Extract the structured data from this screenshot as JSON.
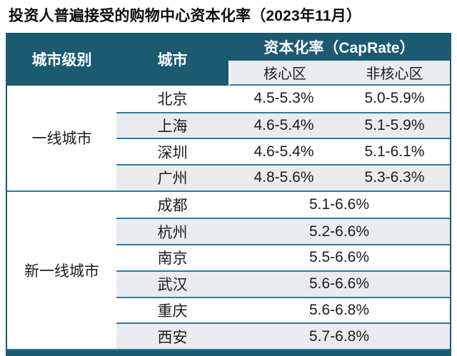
{
  "title": "投资人普遍接受的购物中心资本化率（2023年11月）",
  "table": {
    "header": {
      "tier_col": "城市级别",
      "city_col": "城市",
      "caprate_col": "资本化率（CapRate）",
      "core_col": "核心区",
      "noncore_col": "非核心区"
    },
    "tiers": [
      {
        "label": "一线城市",
        "rows": [
          {
            "city": "北京",
            "core": "4.5-5.3%",
            "noncore": "5.0-5.9%"
          },
          {
            "city": "上海",
            "core": "4.6-5.4%",
            "noncore": "5.1-5.9%"
          },
          {
            "city": "深圳",
            "core": "4.6-5.4%",
            "noncore": "5.1-6.1%"
          },
          {
            "city": "广州",
            "core": "4.8-5.6%",
            "noncore": "5.3-6.3%"
          }
        ]
      },
      {
        "label": "新一线城市",
        "rows": [
          {
            "city": "成都",
            "range": "5.1-6.6%"
          },
          {
            "city": "杭州",
            "range": "5.2-6.6%"
          },
          {
            "city": "南京",
            "range": "5.5-6.6%"
          },
          {
            "city": "武汉",
            "range": "5.6-6.6%"
          },
          {
            "city": "重庆",
            "range": "5.6-6.8%"
          },
          {
            "city": "西安",
            "range": "5.7-6.8%"
          }
        ]
      }
    ]
  },
  "colors": {
    "header_teal": "#1C5A72",
    "divider_blue": "#2E7BA1",
    "row_alt_gray": "#E9EBEE",
    "text": "#1C1C1C"
  },
  "chart_data": {
    "type": "table",
    "title": "投资人普遍接受的购物中心资本化率（2023年11月）",
    "columns": [
      "城市级别",
      "城市",
      "核心区 资本化率（CapRate）",
      "非核心区 资本化率（CapRate）"
    ],
    "rows": [
      [
        "一线城市",
        "北京",
        "4.5-5.3%",
        "5.0-5.9%"
      ],
      [
        "一线城市",
        "上海",
        "4.6-5.4%",
        "5.1-5.9%"
      ],
      [
        "一线城市",
        "深圳",
        "4.6-5.4%",
        "5.1-6.1%"
      ],
      [
        "一线城市",
        "广州",
        "4.8-5.6%",
        "5.3-6.3%"
      ],
      [
        "新一线城市",
        "成都",
        "5.1-6.6%",
        "5.1-6.6%"
      ],
      [
        "新一线城市",
        "杭州",
        "5.2-6.6%",
        "5.2-6.6%"
      ],
      [
        "新一线城市",
        "南京",
        "5.5-6.6%",
        "5.5-6.6%"
      ],
      [
        "新一线城市",
        "武汉",
        "5.6-6.6%",
        "5.6-6.6%"
      ],
      [
        "新一线城市",
        "重庆",
        "5.6-6.8%",
        "5.6-6.8%"
      ],
      [
        "新一线城市",
        "西安",
        "5.7-6.8%",
        "5.7-6.8%"
      ]
    ],
    "notes": "新一线城市 rows show a single merged range spanning both 核心区 and 非核心区 columns"
  }
}
